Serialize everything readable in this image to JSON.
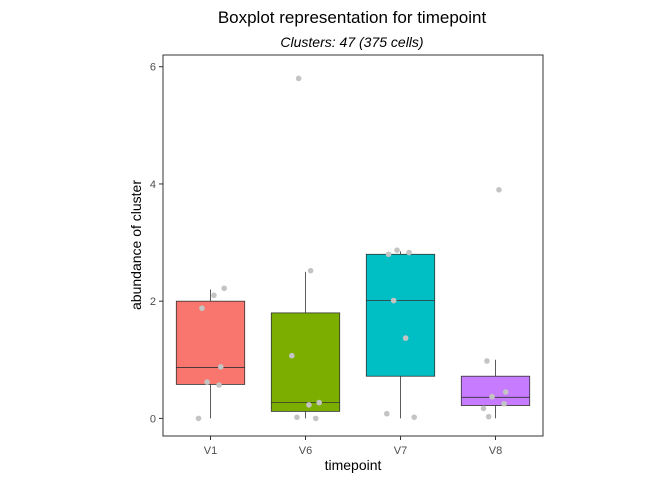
{
  "chart_data": {
    "type": "boxplot",
    "title": "Boxplot representation for timepoint",
    "subtitle": "Clusters: 47 (375 cells)",
    "xlabel": "timepoint",
    "ylabel": "abundance of cluster",
    "categories": [
      "V1",
      "V6",
      "V7",
      "V8"
    ],
    "ylim": [
      -0.3,
      6.2
    ],
    "yticks": [
      0,
      2,
      4,
      6
    ],
    "grid": false,
    "legend": "none",
    "boxes": [
      {
        "category": "V1",
        "color": "#F8766D",
        "whisker_low": 0.0,
        "q1": 0.58,
        "median": 0.87,
        "q3": 2.0,
        "whisker_high": 2.2,
        "points": [
          0.0,
          0.57,
          0.62,
          0.88,
          1.88,
          2.1,
          2.22
        ]
      },
      {
        "category": "V6",
        "color": "#7CAE00",
        "whisker_low": 0.0,
        "q1": 0.12,
        "median": 0.27,
        "q3": 1.8,
        "whisker_high": 2.5,
        "points": [
          0.0,
          0.02,
          0.23,
          0.27,
          1.07,
          2.52,
          5.8
        ]
      },
      {
        "category": "V7",
        "color": "#00BFC4",
        "whisker_low": 0.0,
        "q1": 0.72,
        "median": 2.01,
        "q3": 2.8,
        "whisker_high": 2.85,
        "points": [
          0.02,
          0.08,
          1.37,
          2.01,
          2.8,
          2.83,
          2.87
        ]
      },
      {
        "category": "V8",
        "color": "#C77CFF",
        "whisker_low": 0.0,
        "q1": 0.22,
        "median": 0.36,
        "q3": 0.72,
        "whisker_high": 1.0,
        "points": [
          0.03,
          0.17,
          0.25,
          0.37,
          0.45,
          0.98,
          3.9
        ]
      }
    ],
    "point_color": "#c4c4c4"
  }
}
